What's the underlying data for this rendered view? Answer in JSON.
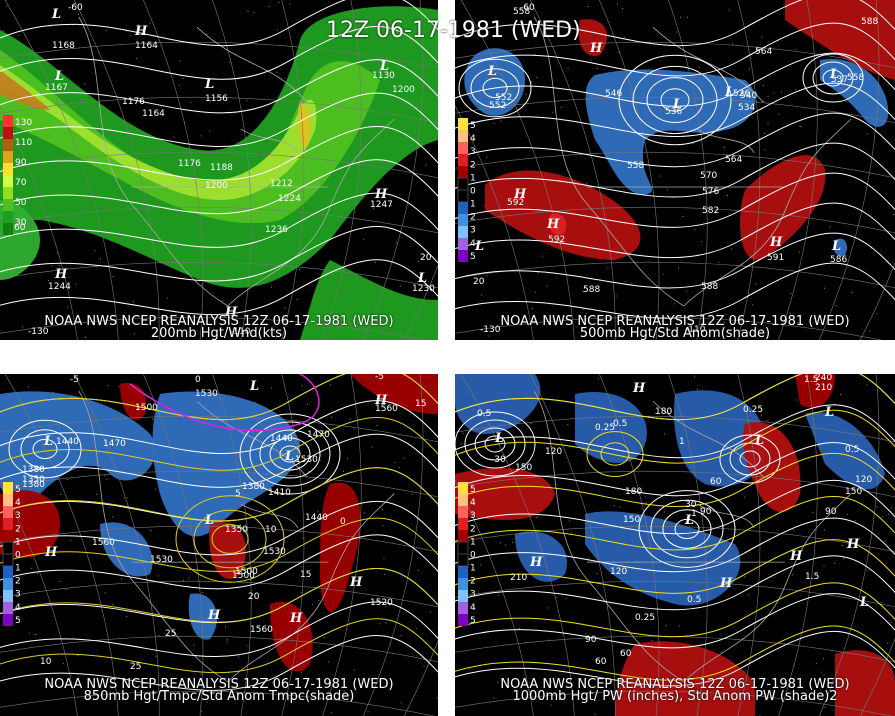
{
  "main_title": "12Z 06-17-1981 (WED)",
  "panels": [
    {
      "id": "p200",
      "line1": "NOAA NWS NCEP REANALYSIS 12Z 06-17-1981 (WED)",
      "line2": "200mb Hgt/Wnd(kts)",
      "colorbar": [
        "#ff3030",
        "#c01010",
        "#b06010",
        "#e0a020",
        "#ffe030",
        "#d0ff40",
        "#90e020",
        "#50c020",
        "#20a020",
        "#108010"
      ],
      "colorbar_labels": [
        "130",
        "110",
        "90",
        "70",
        "50",
        "30"
      ],
      "contour_labels": [
        "1164",
        "1176",
        "1188",
        "1200",
        "1212",
        "1224",
        "1236",
        "1164",
        "1176",
        "1200",
        "1156",
        "1168",
        "1167",
        "1130",
        "1247",
        "1244",
        "1230"
      ],
      "pressure_centers": [
        "H",
        "L",
        "L",
        "L",
        "L",
        "H",
        "H",
        "L",
        "H"
      ],
      "lon_labels": [
        "-130",
        "-110",
        "-60"
      ],
      "lat_labels": [
        "20",
        "60"
      ]
    },
    {
      "id": "p500",
      "line1": "NOAA NWS NCEP REANALYSIS 12Z 06-17-1981 (WED)",
      "line2": "500mb Hgt/Std Anom(shade)",
      "colorbar": [
        "#ffe040",
        "#ffc080",
        "#ff6060",
        "#e02020",
        "#a00000",
        "#000000",
        "#000000",
        "#2060c0",
        "#4090e0",
        "#80c0ff",
        "#a060e0",
        "#8000c0"
      ],
      "colorbar_labels": [
        "5",
        "4",
        "3",
        "2",
        "1",
        "0",
        "1",
        "2",
        "3",
        "4",
        "5"
      ],
      "contour_labels": [
        "558",
        "588",
        "546",
        "552",
        "552",
        "558",
        "564",
        "570",
        "576",
        "582",
        "588",
        "540",
        "534",
        "526",
        "536",
        "592",
        "592",
        "591",
        "586",
        "564",
        "537",
        "558",
        "588"
      ],
      "pressure_centers": [
        "H",
        "L",
        "L",
        "L",
        "L",
        "H",
        "H",
        "L",
        "H",
        "L"
      ],
      "lon_labels": [
        "-130",
        "-110",
        "-60"
      ],
      "lat_labels": [
        "20"
      ]
    },
    {
      "id": "p850",
      "line1": "NOAA NWS NCEP REANALYSIS 12Z 06-17-1981 (WED)",
      "line2": "850mb Hgt/Tmpc/Std Anom Tmpc(shade)",
      "colorbar": [
        "#ffe040",
        "#ffc080",
        "#ff6060",
        "#e02020",
        "#a00000",
        "#000000",
        "#000000",
        "#2060c0",
        "#4090e0",
        "#80c0ff",
        "#a060e0",
        "#8000c0"
      ],
      "colorbar_labels": [
        "5",
        "4",
        "3",
        "2",
        "1",
        "0",
        "1",
        "2",
        "3",
        "4",
        "5"
      ],
      "contour_labels": [
        "1440",
        "1470",
        "1500",
        "1530",
        "1380",
        "1410",
        "1440",
        "1470",
        "1560",
        "1530",
        "1350",
        "1500",
        "1560",
        "1530",
        "1560",
        "1530",
        "1520",
        "1500",
        "1440",
        "1380",
        "1350",
        "1380"
      ],
      "temp_labels": [
        "-5",
        "0",
        "5",
        "10",
        "15",
        "20",
        "25",
        "-5",
        "0",
        "15",
        "10",
        "25"
      ],
      "pressure_centers": [
        "H",
        "L",
        "L",
        "L",
        "H",
        "H",
        "H",
        "L",
        "H"
      ]
    },
    {
      "id": "p1000",
      "line1": "NOAA NWS NCEP REANALYSIS 12Z 06-17-1981 (WED)",
      "line2": "1000mb Hgt/ PW (inches), Std Anom PW (shade)2",
      "colorbar": [
        "#ffe040",
        "#ffc080",
        "#ff6060",
        "#e02020",
        "#a00000",
        "#000000",
        "#000000",
        "#2060c0",
        "#4090e0",
        "#80c0ff",
        "#a060e0",
        "#8000c0"
      ],
      "colorbar_labels": [
        "5",
        "4",
        "3",
        "2",
        "1",
        "0",
        "1",
        "2",
        "3",
        "4",
        "5"
      ],
      "contour_labels": [
        "240",
        "210",
        "180",
        "150",
        "120",
        "90",
        "60",
        "30",
        "-30",
        "150",
        "120",
        "90",
        "60",
        "210",
        "180",
        "150",
        "120",
        "90",
        "60"
      ],
      "pw_labels": [
        "0.5",
        "1",
        "1.5",
        "0.25",
        "0.5",
        "0.25",
        "1.5",
        "0.5",
        "0.25",
        "0.5",
        "1"
      ],
      "pressure_centers": [
        "H",
        "L",
        "L",
        "L",
        "H",
        "H",
        "H",
        "L",
        "H",
        "L"
      ]
    }
  ]
}
